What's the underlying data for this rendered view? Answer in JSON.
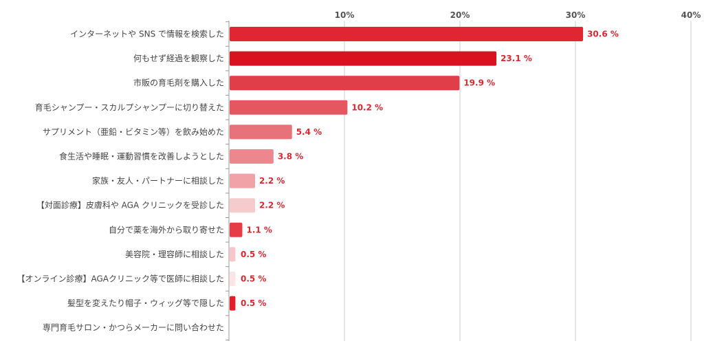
{
  "chart_data": {
    "type": "bar",
    "orientation": "horizontal",
    "categories": [
      "インターネットや SNS で情報を検索した",
      "何もせず経過を観察した",
      "市販の育毛剤を購入した",
      "育毛シャンプー・スカルプシャンプーに切り替えた",
      "サプリメント（亜鉛・ビタミン等）を飲み始めた",
      "食生活や睡眠・運動習慣を改善しようとした",
      "家族・友人・パートナーに相談した",
      "【対面診療】皮膚科や AGA クリニックを受診した",
      "自分で薬を海外から取り寄せた",
      "美容院・理容師に相談した",
      "【オンライン診療】AGAクリニック等で医師に相談した",
      "髪型を変えたり帽子・ウィッグ等で隠した",
      "専門育毛サロン・かつらメーカーに問い合わせた"
    ],
    "values": [
      30.6,
      23.1,
      19.9,
      10.2,
      5.4,
      3.8,
      2.2,
      2.2,
      1.1,
      0.5,
      0.5,
      0.5,
      0
    ],
    "value_labels": [
      "30.6 %",
      "23.1 %",
      "19.9 %",
      "10.2 %",
      "5.4 %",
      "3.8 %",
      "2.2 %",
      "2.2 %",
      "1.1 %",
      "0.5 %",
      "0.5 %",
      "0.5 %",
      ""
    ],
    "bar_colors": [
      "#e02633",
      "#d8121f",
      "#e03e49",
      "#e45660",
      "#e8727a",
      "#ec878d",
      "#f0a2a6",
      "#f6cbcd",
      "#e63c46",
      "#f6c6c9",
      "#fbe4e5",
      "#e21e2c",
      "#e21e2c"
    ],
    "xlim": [
      0,
      40
    ],
    "xticks": [
      10,
      20,
      30,
      40
    ],
    "xtick_labels": [
      "10%",
      "20%",
      "30%",
      "40%"
    ],
    "grid": true,
    "legend": "none",
    "title": "",
    "xlabel": "",
    "ylabel": ""
  },
  "colors": {
    "data_label": "#d62a33",
    "grid": "#cccccc",
    "axis": "#999999"
  }
}
